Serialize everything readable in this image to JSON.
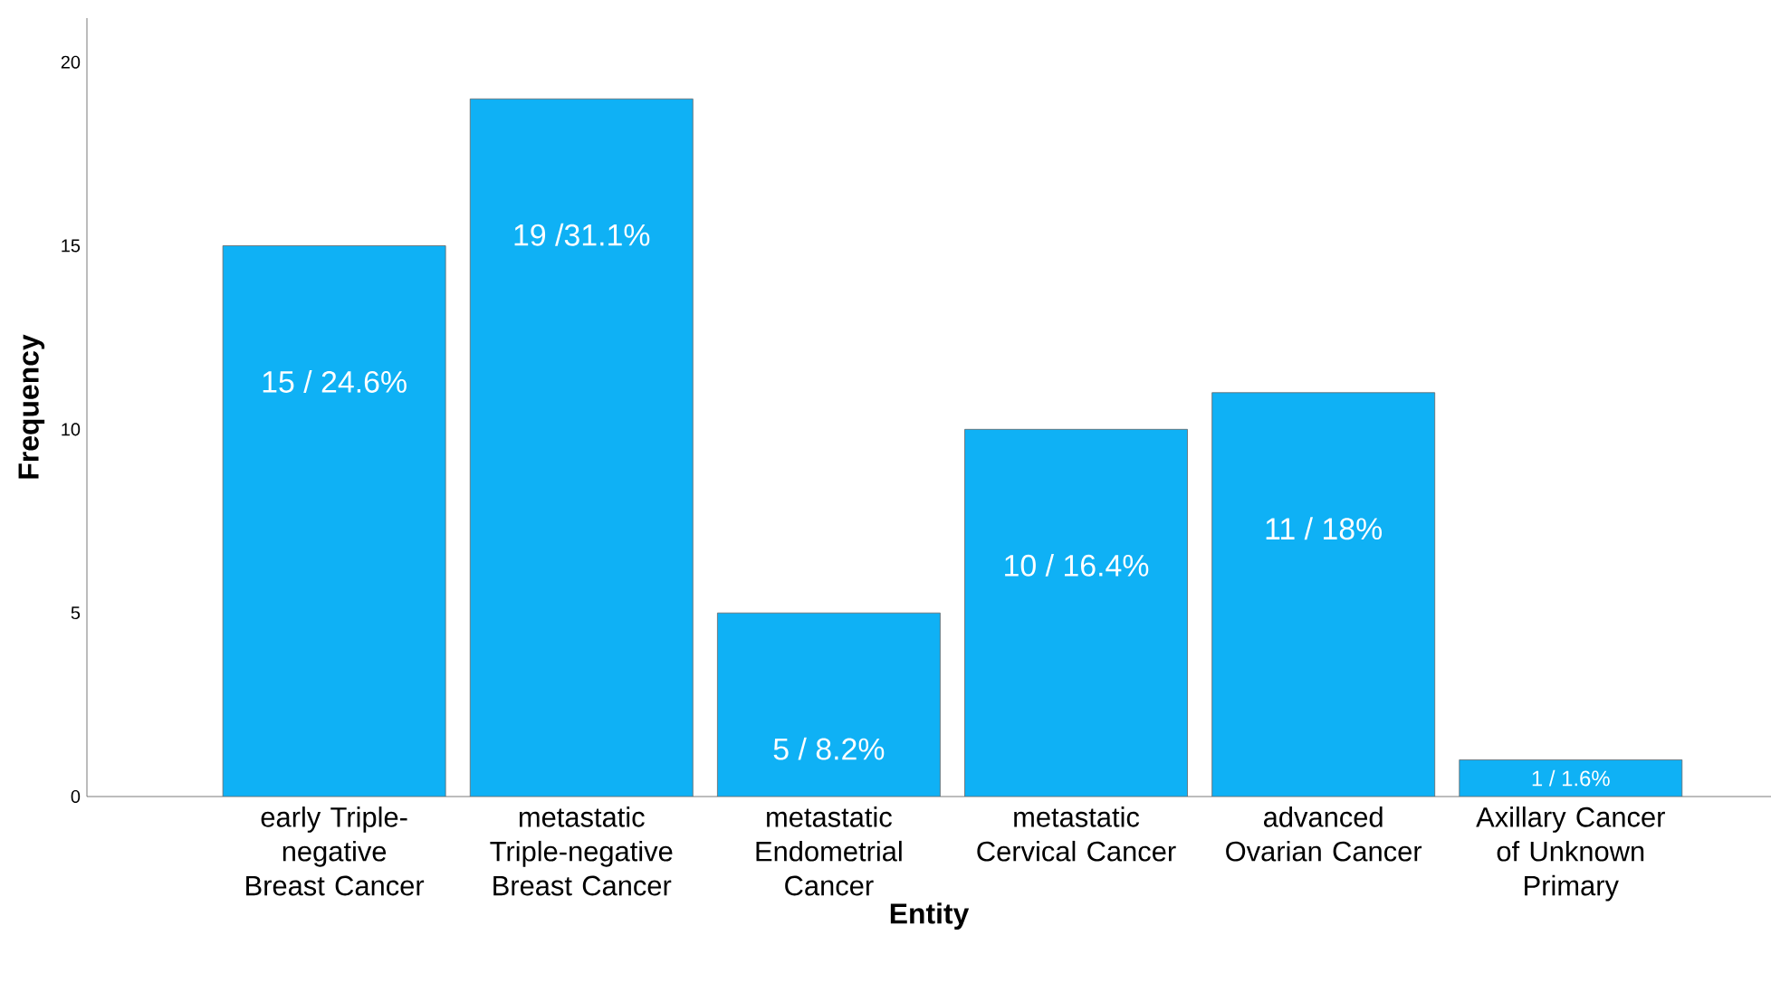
{
  "chart_data": {
    "type": "bar",
    "xlabel": "Entity",
    "ylabel": "Frequency",
    "categories": [
      "early Triple-negative Breast Cancer",
      "metastatic Triple-negative Breast Cancer",
      "metastatic Endometrial Cancer",
      "metastatic Cervical Cancer",
      "advanced Ovarian Cancer",
      "Axillary Cancer of Unknown Primary"
    ],
    "values": [
      15,
      19,
      5,
      10,
      11,
      1
    ],
    "value_labels": [
      "15 / 24.6%",
      "19 /31.1%",
      "5 / 8.2%",
      "10 / 16.4%",
      "11 / 18%",
      "1 / 1.6%"
    ],
    "color": "#0fb1f5",
    "ylim": [
      0,
      21.2
    ],
    "yticks": [
      0,
      5,
      10,
      15,
      20
    ]
  }
}
